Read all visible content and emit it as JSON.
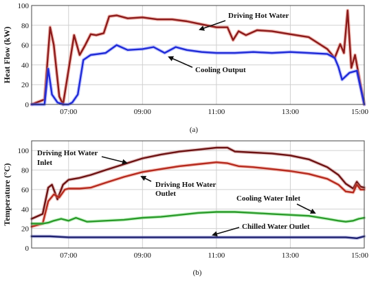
{
  "chart_data": [
    {
      "type": "line",
      "panel_label": "(a)",
      "ylabel": "Heat Flow (kW)",
      "xlabel": "",
      "xlim": [
        6.0,
        15.0
      ],
      "ylim": [
        0,
        100
      ],
      "x_ticks": [
        "07:00",
        "09:00",
        "11:00",
        "13:00",
        "15:00"
      ],
      "x_tick_values": [
        7,
        9,
        11,
        13,
        15
      ],
      "y_ticks": [
        0,
        20,
        40,
        60,
        80,
        100
      ],
      "grid": true,
      "series": [
        {
          "name": "Driving Hot Water",
          "color": "#8b1a1a",
          "glow": "#e06a5a",
          "x": [
            6.0,
            6.35,
            6.5,
            6.6,
            6.75,
            6.85,
            7.0,
            7.15,
            7.3,
            7.45,
            7.6,
            7.75,
            7.95,
            8.1,
            8.3,
            8.6,
            9.0,
            9.4,
            9.8,
            10.2,
            10.6,
            11.0,
            11.3,
            11.45,
            11.6,
            11.8,
            12.1,
            12.5,
            13.0,
            13.5,
            14.0,
            14.2,
            14.35,
            14.45,
            14.55,
            14.65,
            14.75,
            14.85,
            15.0
          ],
          "y": [
            0,
            5,
            78,
            60,
            8,
            0,
            35,
            70,
            50,
            60,
            71,
            70,
            72,
            89,
            90,
            87,
            88,
            86,
            86,
            84,
            81,
            78,
            78,
            65,
            74,
            70,
            75,
            74,
            71,
            68,
            56,
            47,
            61,
            52,
            95,
            37,
            50,
            30,
            0
          ]
        },
        {
          "name": "Cooling Output",
          "color": "#1f2ad6",
          "glow": "#7a86ff",
          "x": [
            6.0,
            6.35,
            6.45,
            6.55,
            6.7,
            6.85,
            7.0,
            7.1,
            7.25,
            7.4,
            7.6,
            7.8,
            8.0,
            8.3,
            8.6,
            9.0,
            9.3,
            9.6,
            9.9,
            10.2,
            10.6,
            11.0,
            11.5,
            12.0,
            12.5,
            13.0,
            13.5,
            14.0,
            14.2,
            14.3,
            14.4,
            14.6,
            14.8,
            15.0
          ],
          "y": [
            0,
            0,
            36,
            10,
            2,
            0,
            0,
            2,
            10,
            45,
            50,
            51,
            52,
            60,
            55,
            56,
            58,
            52,
            58,
            55,
            53,
            52,
            52,
            53,
            52,
            53,
            52,
            51,
            47,
            38,
            25,
            32,
            34,
            0
          ]
        }
      ],
      "annotations": [
        "Driving Hot Water",
        "Cooling Output"
      ]
    },
    {
      "type": "line",
      "panel_label": "(b)",
      "ylabel": "Temperature (°C)",
      "xlabel": "",
      "xlim": [
        6.0,
        15.0
      ],
      "ylim": [
        0,
        110
      ],
      "x_ticks": [
        "07:00",
        "09:00",
        "11:00",
        "13:00",
        "15:00"
      ],
      "x_tick_values": [
        7,
        9,
        11,
        13,
        15
      ],
      "y_ticks": [
        0,
        20,
        40,
        60,
        80,
        100
      ],
      "grid": true,
      "series": [
        {
          "name": "Driving Hot Water Inlet",
          "color": "#6b1212",
          "glow": "#c98080",
          "x": [
            6.0,
            6.3,
            6.45,
            6.55,
            6.7,
            6.85,
            7.0,
            7.3,
            7.6,
            8.0,
            8.5,
            9.0,
            9.5,
            10.0,
            10.5,
            11.0,
            11.3,
            11.5,
            12.0,
            12.5,
            13.0,
            13.5,
            14.0,
            14.3,
            14.5,
            14.7,
            14.8,
            14.9,
            15.0
          ],
          "y": [
            30,
            35,
            62,
            65,
            50,
            65,
            70,
            72,
            75,
            80,
            86,
            92,
            96,
            99,
            101,
            103,
            103,
            99,
            98,
            97,
            95,
            91,
            83,
            75,
            66,
            61,
            68,
            63,
            62
          ]
        },
        {
          "name": "Driving Hot Water Outlet",
          "color": "#b52a1e",
          "glow": "#ee8a7a",
          "x": [
            6.0,
            6.3,
            6.45,
            6.6,
            6.75,
            6.9,
            7.0,
            7.3,
            7.6,
            8.0,
            8.5,
            9.0,
            9.5,
            10.0,
            10.5,
            11.0,
            11.3,
            11.6,
            12.0,
            12.5,
            13.0,
            13.5,
            14.0,
            14.3,
            14.5,
            14.7,
            14.8,
            14.9,
            15.0
          ],
          "y": [
            22,
            25,
            48,
            55,
            52,
            60,
            61,
            61,
            62,
            67,
            73,
            78,
            81,
            84,
            86,
            88,
            87,
            84,
            83,
            81,
            79,
            76,
            71,
            65,
            58,
            57,
            65,
            60,
            60
          ]
        },
        {
          "name": "Cooling Water Inlet",
          "color": "#2a9a2a",
          "glow": "#8fe88f",
          "x": [
            6.0,
            6.3,
            6.45,
            6.6,
            6.8,
            7.0,
            7.2,
            7.5,
            8.0,
            8.5,
            9.0,
            9.5,
            10.0,
            10.5,
            11.0,
            11.5,
            12.0,
            12.5,
            13.0,
            13.5,
            14.0,
            14.3,
            14.5,
            14.7,
            14.85,
            15.0
          ],
          "y": [
            25,
            25,
            26,
            28,
            30,
            28,
            31,
            27,
            28,
            29,
            31,
            32,
            34,
            36,
            37,
            37,
            36,
            35,
            34,
            33,
            30,
            28,
            27,
            28,
            30,
            31
          ]
        },
        {
          "name": "Chilled Water Outlet",
          "color": "#1c1f6e",
          "glow": "#8a8ed8",
          "x": [
            6.0,
            6.5,
            7.0,
            8.0,
            9.0,
            10.0,
            11.0,
            12.0,
            13.0,
            14.0,
            14.5,
            14.8,
            15.0
          ],
          "y": [
            12,
            12,
            11,
            11,
            11,
            11,
            11,
            11,
            11,
            11,
            11,
            10,
            12
          ]
        }
      ],
      "annotations": [
        "Driving Hot Water Inlet",
        "Driving Hot Water Outlet",
        "Cooling Water Inlet",
        "Chilled Water Outlet"
      ]
    }
  ]
}
